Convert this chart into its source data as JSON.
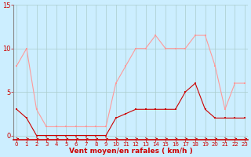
{
  "x": [
    0,
    1,
    2,
    3,
    4,
    5,
    6,
    7,
    8,
    9,
    10,
    11,
    12,
    13,
    14,
    15,
    16,
    17,
    18,
    19,
    20,
    21,
    22,
    23
  ],
  "wind_avg": [
    3,
    2,
    0,
    0,
    0,
    0,
    0,
    0,
    0,
    0,
    2,
    2.5,
    3,
    3,
    3,
    3,
    3,
    5,
    6,
    3,
    2,
    2,
    2,
    2
  ],
  "wind_gust": [
    8,
    10,
    3,
    1,
    1,
    1,
    1,
    1,
    1,
    1,
    6,
    8,
    10,
    10,
    11.5,
    10,
    10,
    10,
    11.5,
    11.5,
    8,
    3,
    6,
    6
  ],
  "bg_color": "#cceeff",
  "grid_color": "#aacccc",
  "line_avg_color": "#cc0000",
  "line_gust_color": "#ff9999",
  "xlabel": "Vent moyen/en rafales ( km/h )",
  "xlabel_color": "#cc0000",
  "tick_color": "#cc0000",
  "ylim": [
    -0.5,
    15
  ],
  "yticks": [
    0,
    5,
    10,
    15
  ],
  "xlim": [
    -0.3,
    23.3
  ]
}
